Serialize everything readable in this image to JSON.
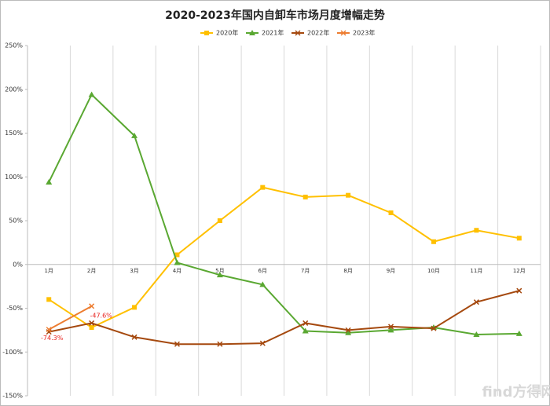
{
  "chart_data": {
    "type": "line",
    "title": "2020-2023年国内自卸车市场月度增幅走势",
    "categories": [
      "1月",
      "2月",
      "3月",
      "4月",
      "5月",
      "6月",
      "7月",
      "8月",
      "9月",
      "10月",
      "11月",
      "12月"
    ],
    "series": [
      {
        "name": "2020年",
        "color": "#ffc000",
        "marker": "square",
        "values": [
          -40,
          -72,
          -49,
          11,
          50,
          88,
          77,
          79,
          59,
          26,
          39,
          30
        ]
      },
      {
        "name": "2021年",
        "color": "#5aa832",
        "marker": "triangle",
        "values": [
          94,
          194,
          147,
          2,
          -12,
          -23,
          -76,
          -78,
          -75,
          -72,
          -80,
          -79
        ]
      },
      {
        "name": "2022年",
        "color": "#a5490f",
        "marker": "x",
        "values": [
          -77,
          -67,
          -83,
          -91,
          -91,
          -90,
          -67,
          -75,
          -71,
          -73,
          -43,
          -30
        ]
      },
      {
        "name": "2023年",
        "color": "#ed7d31",
        "marker": "x",
        "values": [
          -74.3,
          -47.6,
          null,
          null,
          null,
          null,
          null,
          null,
          null,
          null,
          null,
          null
        ],
        "value_labels": [
          "-74.3%",
          "-47.6%",
          null,
          null,
          null,
          null,
          null,
          null,
          null,
          null,
          null,
          null
        ],
        "label_color": "#e8231f"
      }
    ],
    "ylim": [
      -150,
      250
    ],
    "yticks": [
      {
        "value": -150,
        "label": "-150%"
      },
      {
        "value": -100,
        "label": "-100%"
      },
      {
        "value": -50,
        "label": "-50%"
      },
      {
        "value": 0,
        "label": "0%"
      },
      {
        "value": 50,
        "label": "50%"
      },
      {
        "value": 100,
        "label": "100%"
      },
      {
        "value": 150,
        "label": "150%"
      },
      {
        "value": 200,
        "label": "200%"
      },
      {
        "value": 250,
        "label": "250%"
      }
    ],
    "grid": "x",
    "legend": "top",
    "watermark": "find方得网"
  }
}
